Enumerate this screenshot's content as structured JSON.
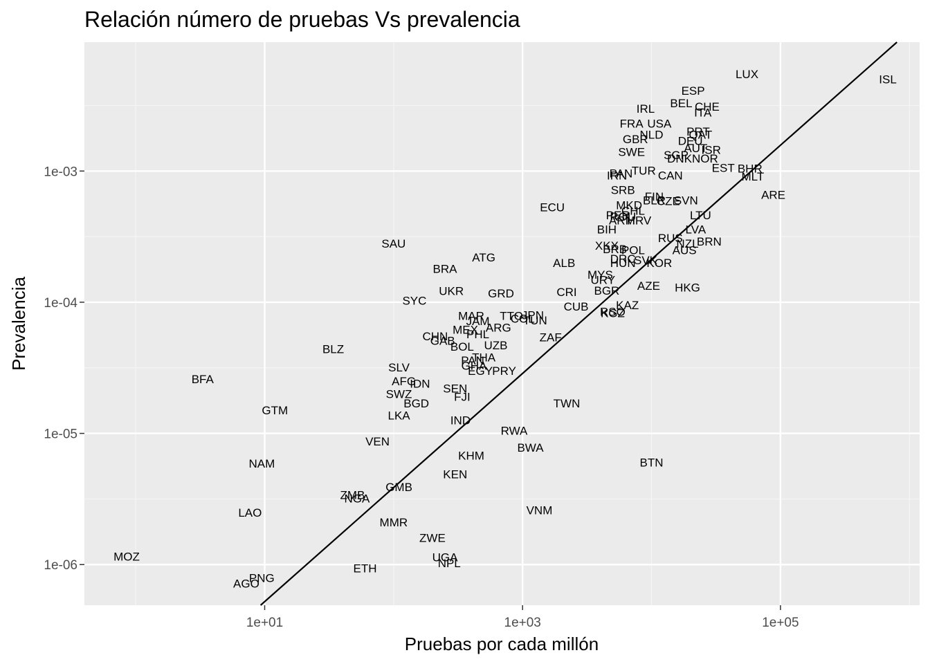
{
  "chart_data": {
    "type": "scatter",
    "title": "Relación número de pruebas Vs prevalencia",
    "xlabel": "Pruebas por cada millón",
    "ylabel": "Prevalencia",
    "x_scale": "log10",
    "y_scale": "log10",
    "xlim": [
      0.4,
      1200000
    ],
    "ylim": [
      4.9e-07,
      0.0096
    ],
    "x_ticks": [
      10,
      1000,
      100000
    ],
    "x_tick_labels": [
      "1e+01",
      "1e+03",
      "1e+05"
    ],
    "y_ticks": [
      1e-06,
      1e-05,
      0.0001,
      0.001
    ],
    "y_tick_labels": [
      "1e-06",
      "1e-05",
      "1e-04",
      "1e-03"
    ],
    "trend_line": {
      "from": [
        9.3,
        4.9e-07
      ],
      "to": [
        800000,
        0.0096
      ]
    },
    "points": [
      {
        "label": "LUX",
        "x": 55000,
        "y": 0.0055
      },
      {
        "label": "ISL",
        "x": 680000,
        "y": 0.005
      },
      {
        "label": "ESP",
        "x": 21000,
        "y": 0.0041
      },
      {
        "label": "BEL",
        "x": 17000,
        "y": 0.0033
      },
      {
        "label": "CHE",
        "x": 27000,
        "y": 0.0031
      },
      {
        "label": "IRL",
        "x": 9000,
        "y": 0.003
      },
      {
        "label": "ITA",
        "x": 25000,
        "y": 0.0028
      },
      {
        "label": "FRA",
        "x": 7000,
        "y": 0.0023
      },
      {
        "label": "USA",
        "x": 11500,
        "y": 0.0023
      },
      {
        "label": "NLD",
        "x": 10000,
        "y": 0.0019
      },
      {
        "label": "GBR",
        "x": 7500,
        "y": 0.00175
      },
      {
        "label": "PRT",
        "x": 23000,
        "y": 0.002
      },
      {
        "label": "QAT",
        "x": 24000,
        "y": 0.0019
      },
      {
        "label": "DEU",
        "x": 20000,
        "y": 0.0017
      },
      {
        "label": "AUT",
        "x": 22000,
        "y": 0.0015
      },
      {
        "label": "ISR",
        "x": 29000,
        "y": 0.00145
      },
      {
        "label": "SWE",
        "x": 7000,
        "y": 0.0014
      },
      {
        "label": "SGP",
        "x": 15500,
        "y": 0.00133
      },
      {
        "label": "DNK",
        "x": 16500,
        "y": 0.00125
      },
      {
        "label": "NOR",
        "x": 26000,
        "y": 0.00125
      },
      {
        "label": "EST",
        "x": 36000,
        "y": 0.00106
      },
      {
        "label": "BHR",
        "x": 58000,
        "y": 0.00105
      },
      {
        "label": "MLT",
        "x": 61000,
        "y": 0.00091
      },
      {
        "label": "TUR",
        "x": 8700,
        "y": 0.00101
      },
      {
        "label": "PAN",
        "x": 5800,
        "y": 0.00096
      },
      {
        "label": "IRN",
        "x": 5400,
        "y": 0.00093
      },
      {
        "label": "CAN",
        "x": 14000,
        "y": 0.00093
      },
      {
        "label": "ARE",
        "x": 88000,
        "y": 0.00066
      },
      {
        "label": "SRB",
        "x": 6000,
        "y": 0.00072
      },
      {
        "label": "FIN",
        "x": 10500,
        "y": 0.00064
      },
      {
        "label": "BLR",
        "x": 10500,
        "y": 0.0006
      },
      {
        "label": "CZE",
        "x": 13500,
        "y": 0.00059
      },
      {
        "label": "SVN",
        "x": 18500,
        "y": 0.0006
      },
      {
        "label": "ECU",
        "x": 1700,
        "y": 0.00053
      },
      {
        "label": "MKD",
        "x": 6700,
        "y": 0.00055
      },
      {
        "label": "CHL",
        "x": 7200,
        "y": 0.0005
      },
      {
        "label": "PER",
        "x": 5500,
        "y": 0.00046
      },
      {
        "label": "ROU",
        "x": 6000,
        "y": 0.00045
      },
      {
        "label": "ARM",
        "x": 5900,
        "y": 0.00042
      },
      {
        "label": "HRV",
        "x": 8000,
        "y": 0.00042
      },
      {
        "label": "LTU",
        "x": 24000,
        "y": 0.00046
      },
      {
        "label": "BIH",
        "x": 4500,
        "y": 0.00036
      },
      {
        "label": "LVA",
        "x": 22000,
        "y": 0.00036
      },
      {
        "label": "RUS",
        "x": 14000,
        "y": 0.00031
      },
      {
        "label": "BRN",
        "x": 28000,
        "y": 0.00029
      },
      {
        "label": "NZL",
        "x": 19000,
        "y": 0.00028
      },
      {
        "label": "AUS",
        "x": 18000,
        "y": 0.00025
      },
      {
        "label": "XKX",
        "x": 4500,
        "y": 0.00027
      },
      {
        "label": "BRB",
        "x": 5200,
        "y": 0.000255
      },
      {
        "label": "POL",
        "x": 7200,
        "y": 0.00025
      },
      {
        "label": "DRC",
        "x": 6000,
        "y": 0.000215
      },
      {
        "label": "SVK",
        "x": 9000,
        "y": 0.00021
      },
      {
        "label": "HUN",
        "x": 6000,
        "y": 0.0002
      },
      {
        "label": "KOR",
        "x": 11500,
        "y": 0.0002
      },
      {
        "label": "ALB",
        "x": 2100,
        "y": 0.0002
      },
      {
        "label": "MYS",
        "x": 4000,
        "y": 0.000162
      },
      {
        "label": "URY",
        "x": 4200,
        "y": 0.000148
      },
      {
        "label": "AZE",
        "x": 9500,
        "y": 0.000134
      },
      {
        "label": "HKG",
        "x": 19000,
        "y": 0.00013
      },
      {
        "label": "CRI",
        "x": 2200,
        "y": 0.00012
      },
      {
        "label": "BGR",
        "x": 4500,
        "y": 0.000123
      },
      {
        "label": "SAU",
        "x": 100,
        "y": 0.00028
      },
      {
        "label": "ATG",
        "x": 500,
        "y": 0.00022
      },
      {
        "label": "BRA",
        "x": 250,
        "y": 0.00018
      },
      {
        "label": "UKR",
        "x": 280,
        "y": 0.000122
      },
      {
        "label": "GRD",
        "x": 680,
        "y": 0.000117
      },
      {
        "label": "SYC",
        "x": 145,
        "y": 0.000103
      },
      {
        "label": "CUB",
        "x": 2600,
        "y": 9.3e-05
      },
      {
        "label": "KAZ",
        "x": 6500,
        "y": 9.5e-05
      },
      {
        "label": "KGZ",
        "x": 5000,
        "y": 8.3e-05
      },
      {
        "label": "RSO",
        "x": 5000,
        "y": 8.5e-05
      },
      {
        "label": "MAR",
        "x": 400,
        "y": 7.9e-05
      },
      {
        "label": "TTO",
        "x": 820,
        "y": 7.9e-05
      },
      {
        "label": "JPN",
        "x": 1200,
        "y": 8e-05
      },
      {
        "label": "COL",
        "x": 1000,
        "y": 7.5e-05
      },
      {
        "label": "TUN",
        "x": 1250,
        "y": 7.3e-05
      },
      {
        "label": "JAM",
        "x": 450,
        "y": 7.2e-05
      },
      {
        "label": "ARG",
        "x": 650,
        "y": 6.4e-05
      },
      {
        "label": "MEX",
        "x": 360,
        "y": 6.2e-05
      },
      {
        "label": "PHL",
        "x": 450,
        "y": 5.7e-05
      },
      {
        "label": "CHN",
        "x": 210,
        "y": 5.5e-05
      },
      {
        "label": "GAB",
        "x": 240,
        "y": 5.1e-05
      },
      {
        "label": "ZAF",
        "x": 1650,
        "y": 5.4e-05
      },
      {
        "label": "BOL",
        "x": 340,
        "y": 4.6e-05
      },
      {
        "label": "UZB",
        "x": 620,
        "y": 4.7e-05
      },
      {
        "label": "BLZ",
        "x": 34,
        "y": 4.4e-05
      },
      {
        "label": "THA",
        "x": 500,
        "y": 3.8e-05
      },
      {
        "label": "PAN2",
        "x": 410,
        "y": 3.6e-05
      },
      {
        "label": "GHA",
        "x": 420,
        "y": 3.3e-05
      },
      {
        "label": "EGY",
        "x": 470,
        "y": 3e-05
      },
      {
        "label": "PRY",
        "x": 720,
        "y": 3e-05
      },
      {
        "label": "SLV",
        "x": 110,
        "y": 3.2e-05
      },
      {
        "label": "AFG",
        "x": 120,
        "y": 2.5e-05
      },
      {
        "label": "IDN",
        "x": 160,
        "y": 2.4e-05
      },
      {
        "label": "SEN",
        "x": 300,
        "y": 2.2e-05
      },
      {
        "label": "FJI",
        "x": 340,
        "y": 1.9e-05
      },
      {
        "label": "SWZ",
        "x": 110,
        "y": 2e-05
      },
      {
        "label": "BGD",
        "x": 150,
        "y": 1.7e-05
      },
      {
        "label": "TWN",
        "x": 2200,
        "y": 1.7e-05
      },
      {
        "label": "BFA",
        "x": 3.3,
        "y": 2.6e-05
      },
      {
        "label": "GTM",
        "x": 12,
        "y": 1.5e-05
      },
      {
        "label": "LKA",
        "x": 110,
        "y": 1.37e-05
      },
      {
        "label": "IND",
        "x": 330,
        "y": 1.26e-05
      },
      {
        "label": "RWA",
        "x": 860,
        "y": 1.05e-05
      },
      {
        "label": "VEN",
        "x": 75,
        "y": 8.7e-06
      },
      {
        "label": "BWA",
        "x": 1150,
        "y": 7.8e-06
      },
      {
        "label": "KHM",
        "x": 400,
        "y": 6.8e-06
      },
      {
        "label": "NAM",
        "x": 9.5,
        "y": 5.9e-06
      },
      {
        "label": "BTN",
        "x": 10000,
        "y": 6e-06
      },
      {
        "label": "KEN",
        "x": 300,
        "y": 4.9e-06
      },
      {
        "label": "GMB",
        "x": 110,
        "y": 3.9e-06
      },
      {
        "label": "ZMB",
        "x": 48,
        "y": 3.4e-06
      },
      {
        "label": "NGA",
        "x": 52,
        "y": 3.2e-06
      },
      {
        "label": "LAO",
        "x": 7.7,
        "y": 2.5e-06
      },
      {
        "label": "VNM",
        "x": 1350,
        "y": 2.6e-06
      },
      {
        "label": "MMR",
        "x": 100,
        "y": 2.1e-06
      },
      {
        "label": "ZWE",
        "x": 200,
        "y": 1.6e-06
      },
      {
        "label": "MOZ",
        "x": 0.85,
        "y": 1.15e-06
      },
      {
        "label": "UGA",
        "x": 250,
        "y": 1.14e-06
      },
      {
        "label": "NPL",
        "x": 270,
        "y": 1.03e-06
      },
      {
        "label": "ETH",
        "x": 60,
        "y": 9.4e-07
      },
      {
        "label": "PNG",
        "x": 9.5,
        "y": 7.9e-07
      },
      {
        "label": "AGO",
        "x": 7.2,
        "y": 7.2e-07
      }
    ]
  }
}
